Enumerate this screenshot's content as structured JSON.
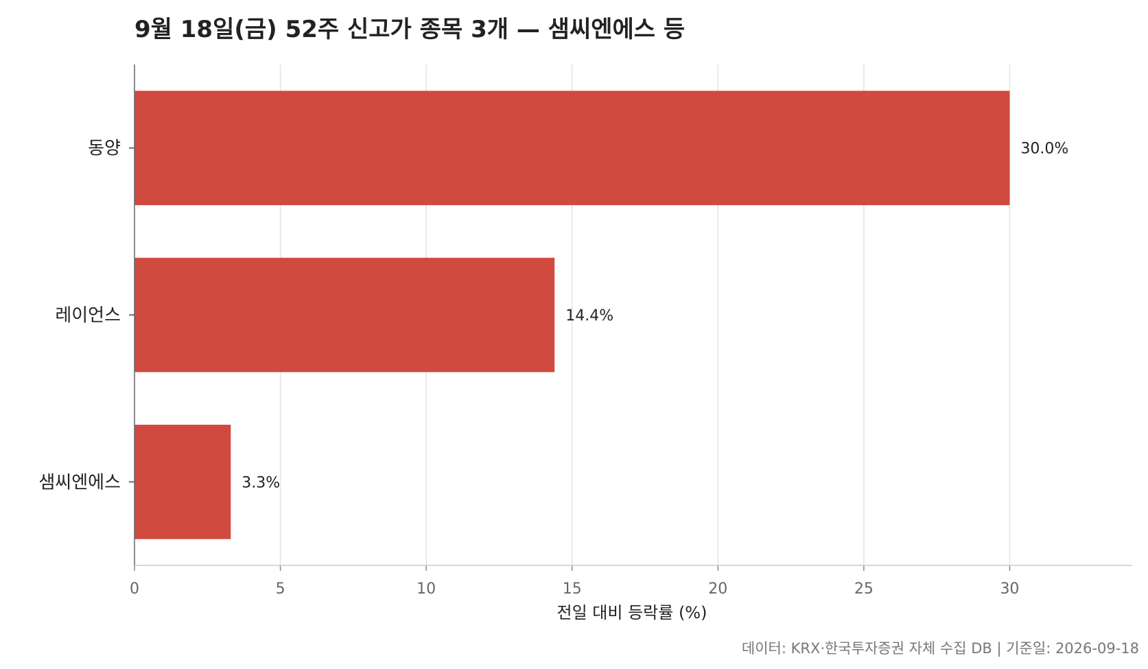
{
  "chart_data": {
    "type": "bar",
    "orientation": "horizontal",
    "title": "9월 18일(금) 52주 신고가 종목 3개 — 샘씨엔에스 등",
    "categories": [
      "동양",
      "레이언스",
      "샘씨엔에스"
    ],
    "values": [
      30.0,
      14.4,
      3.3
    ],
    "value_labels": [
      "30.0%",
      "14.4%",
      "3.3%"
    ],
    "xlabel": "전일 대비 등락률 (%)",
    "ylabel": "",
    "xlim": [
      0,
      34.2
    ],
    "xticks": [
      0,
      5,
      10,
      15,
      20,
      25,
      30
    ],
    "grid": "vertical",
    "bar_color": "#d04a40",
    "source_note": "데이터: KRX·한국투자증권 자체 수집 DB  |  기준일: 2026-09-18"
  }
}
